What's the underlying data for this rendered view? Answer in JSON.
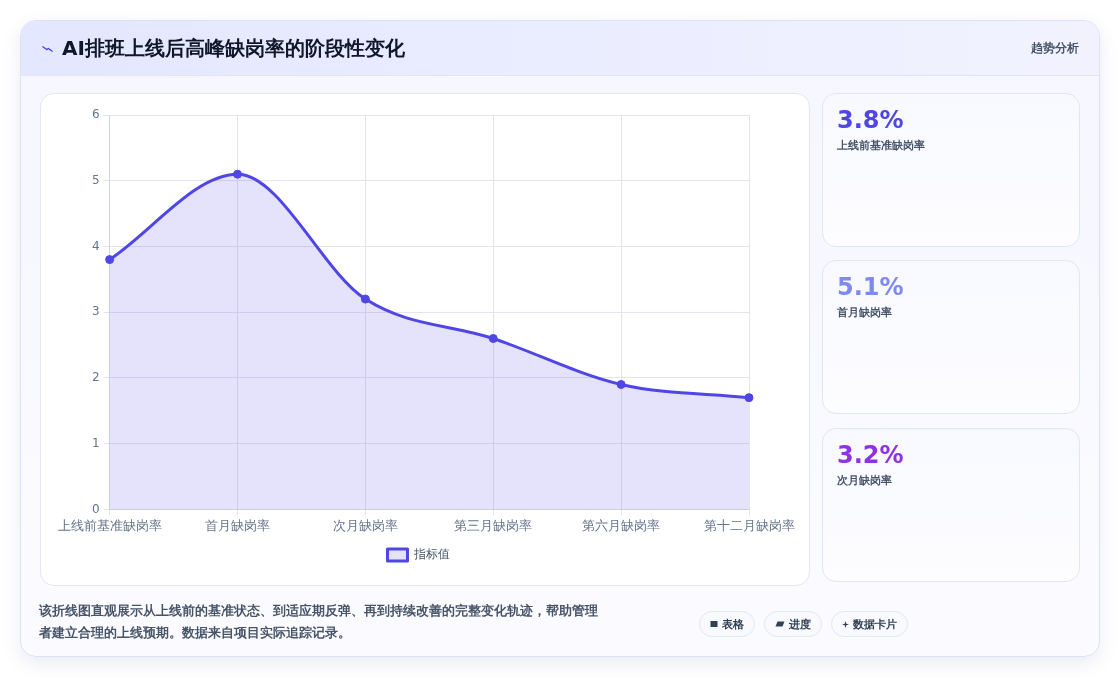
{
  "chart_data": {
    "type": "area",
    "title": "AI排班上线后高峰缺岗率的阶段性变化",
    "subtitle": "趋势分析",
    "categories": [
      "上线前基准缺岗率",
      "首月缺岗率",
      "次月缺岗率",
      "第三月缺岗率",
      "第六月缺岗率",
      "第十二月缺岗率"
    ],
    "series": [
      {
        "name": "指标值",
        "color": "#4f46e5",
        "values": [
          3.8,
          5.1,
          3.2,
          2.6,
          1.9,
          1.7
        ]
      }
    ],
    "ylim": [
      0,
      6
    ],
    "yticks": [
      0,
      1,
      2,
      3,
      4,
      5,
      6
    ],
    "grid": true,
    "legend": "bottom",
    "marker": "circle",
    "annotations": [
      "3.8%",
      "上线前基准缺岗率",
      "5.1%",
      "首月缺岗率",
      "3.2%",
      "次月缺岗率",
      "该折线图直观展示从上线前的基准状态、到适应期反弹、再到持续改善的完整变化轨迹，帮助管理者建立合理的上线预期。数据来自项目实际追踪记录。",
      "表格",
      "进度",
      "数据卡片"
    ]
  }
}
